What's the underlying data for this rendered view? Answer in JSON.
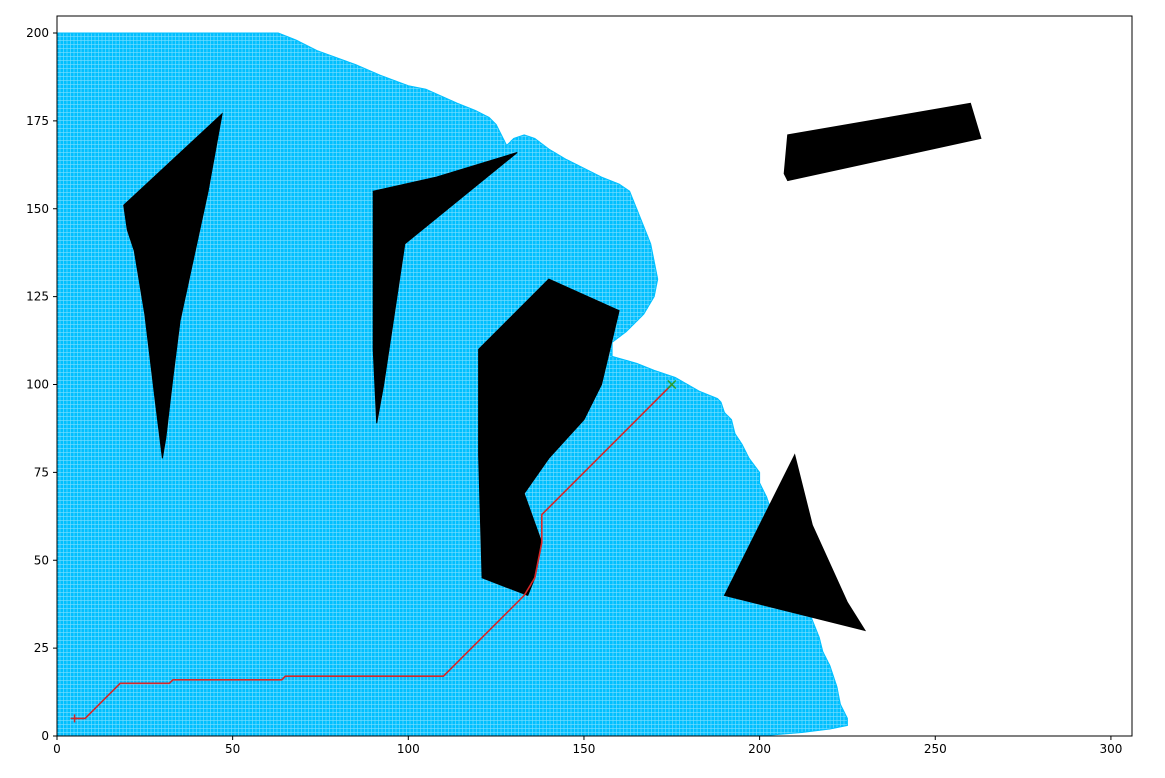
{
  "chart_data": {
    "type": "scatter",
    "title": "",
    "xlabel": "",
    "ylabel": "",
    "xlim": [
      0,
      306
    ],
    "ylim": [
      0,
      201
    ],
    "xticks": [
      0,
      50,
      100,
      150,
      200,
      250,
      300
    ],
    "yticks": [
      0,
      25,
      50,
      75,
      100,
      125,
      150,
      175,
      200
    ],
    "grid": false,
    "legend": "none",
    "explored_region": {
      "color": "#00bfff",
      "boundary": [
        [
          0,
          200
        ],
        [
          63,
          200
        ],
        [
          68,
          198
        ],
        [
          74,
          195
        ],
        [
          85,
          191
        ],
        [
          92,
          188
        ],
        [
          100,
          185
        ],
        [
          105,
          184
        ],
        [
          114,
          180
        ],
        [
          119,
          178
        ],
        [
          123,
          176
        ],
        [
          125,
          174
        ],
        [
          128,
          168
        ],
        [
          130,
          170
        ],
        [
          133,
          171
        ],
        [
          136,
          170
        ],
        [
          140,
          167
        ],
        [
          145,
          164
        ],
        [
          155,
          159
        ],
        [
          160,
          157
        ],
        [
          163,
          155
        ],
        [
          165,
          150
        ],
        [
          167,
          145
        ],
        [
          169,
          140
        ],
        [
          170,
          135
        ],
        [
          171,
          130
        ],
        [
          170,
          125
        ],
        [
          167,
          120
        ],
        [
          162,
          115
        ],
        [
          158,
          112
        ],
        [
          158,
          108
        ],
        [
          165,
          106
        ],
        [
          170,
          104
        ],
        [
          176,
          102
        ],
        [
          183,
          98
        ],
        [
          188,
          96
        ],
        [
          189,
          95
        ],
        [
          190,
          92
        ],
        [
          192,
          90
        ],
        [
          193,
          86
        ],
        [
          195,
          83
        ],
        [
          197,
          79
        ],
        [
          200,
          75
        ],
        [
          200,
          72
        ],
        [
          202,
          68
        ],
        [
          203,
          65
        ],
        [
          205,
          60
        ],
        [
          208,
          55
        ],
        [
          209,
          52
        ],
        [
          210,
          48
        ],
        [
          210,
          44
        ],
        [
          212,
          40
        ],
        [
          214,
          36
        ],
        [
          215,
          33
        ],
        [
          217,
          28
        ],
        [
          218,
          24
        ],
        [
          220,
          20
        ],
        [
          222,
          14
        ],
        [
          223,
          9
        ],
        [
          225,
          5
        ],
        [
          225,
          3
        ],
        [
          220,
          2
        ],
        [
          212,
          1
        ],
        [
          200,
          0
        ],
        [
          0,
          0
        ]
      ]
    },
    "obstacles": [
      {
        "color": "#000000",
        "points": [
          [
            19,
            151
          ],
          [
            47,
            177
          ],
          [
            43,
            155
          ],
          [
            35,
            118
          ],
          [
            33,
            102
          ],
          [
            31,
            85
          ],
          [
            30,
            79
          ],
          [
            28,
            95
          ],
          [
            25,
            120
          ],
          [
            22,
            138
          ],
          [
            20,
            144
          ]
        ]
      },
      {
        "color": "#000000",
        "points": [
          [
            90,
            155
          ],
          [
            108,
            159
          ],
          [
            131,
            166
          ],
          [
            99,
            140
          ],
          [
            96,
            120
          ],
          [
            93,
            100
          ],
          [
            91,
            89
          ],
          [
            90,
            110
          ]
        ]
      },
      {
        "color": "#000000",
        "points": [
          [
            120,
            110
          ],
          [
            140,
            130
          ],
          [
            160,
            121
          ],
          [
            155,
            100
          ],
          [
            150,
            90
          ],
          [
            140,
            79
          ],
          [
            133,
            69
          ],
          [
            138,
            55
          ],
          [
            136,
            45
          ],
          [
            134,
            40
          ],
          [
            121,
            45
          ],
          [
            120,
            80
          ]
        ]
      },
      {
        "color": "#000000",
        "points": [
          [
            208,
            171
          ],
          [
            260,
            180
          ],
          [
            263,
            170
          ],
          [
            208,
            158
          ],
          [
            207,
            160
          ]
        ]
      },
      {
        "color": "#000000",
        "points": [
          [
            210,
            80
          ],
          [
            190,
            40
          ],
          [
            230,
            30
          ],
          [
            225,
            38
          ],
          [
            215,
            60
          ]
        ]
      }
    ],
    "series": [
      {
        "color": "#d62728",
        "x": [
          5,
          8,
          18,
          32,
          33,
          64,
          65,
          110,
          133,
          136,
          137,
          138,
          138,
          175
        ],
        "y": [
          5,
          5,
          15,
          15,
          16,
          16,
          17,
          17,
          40,
          45,
          50,
          55,
          63,
          100
        ]
      }
    ],
    "markers": [
      {
        "x": 5,
        "y": 5,
        "symbol": "+",
        "color": "#d62728"
      },
      {
        "x": 175,
        "y": 100,
        "symbol": "x",
        "color": "#2ca02c"
      }
    ]
  }
}
